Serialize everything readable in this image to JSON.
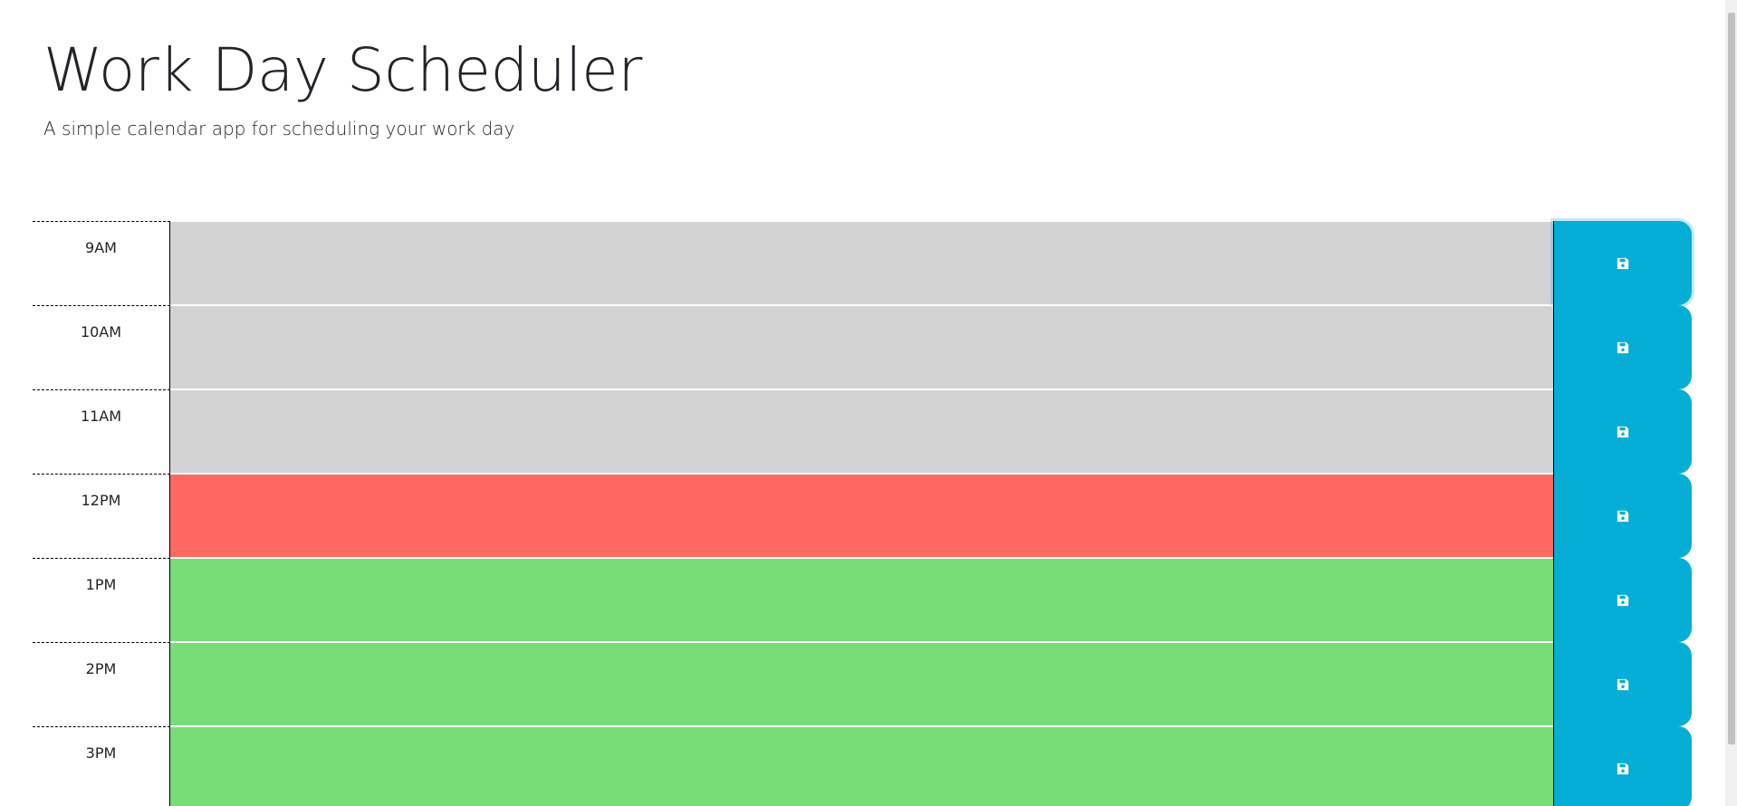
{
  "header": {
    "title": "Work Day Scheduler",
    "subtitle": "A simple calendar app for scheduling your work day"
  },
  "colors": {
    "past": "#d3d3d3",
    "present": "#ff6961",
    "future": "#77dd77",
    "save_button": "#06aed5"
  },
  "save_icon": "floppy-disk-icon",
  "rows": [
    {
      "hour": "9AM",
      "status": "past",
      "text": ""
    },
    {
      "hour": "10AM",
      "status": "past",
      "text": ""
    },
    {
      "hour": "11AM",
      "status": "past",
      "text": ""
    },
    {
      "hour": "12PM",
      "status": "present",
      "text": ""
    },
    {
      "hour": "1PM",
      "status": "future",
      "text": ""
    },
    {
      "hour": "2PM",
      "status": "future",
      "text": ""
    },
    {
      "hour": "3PM",
      "status": "future",
      "text": ""
    }
  ]
}
